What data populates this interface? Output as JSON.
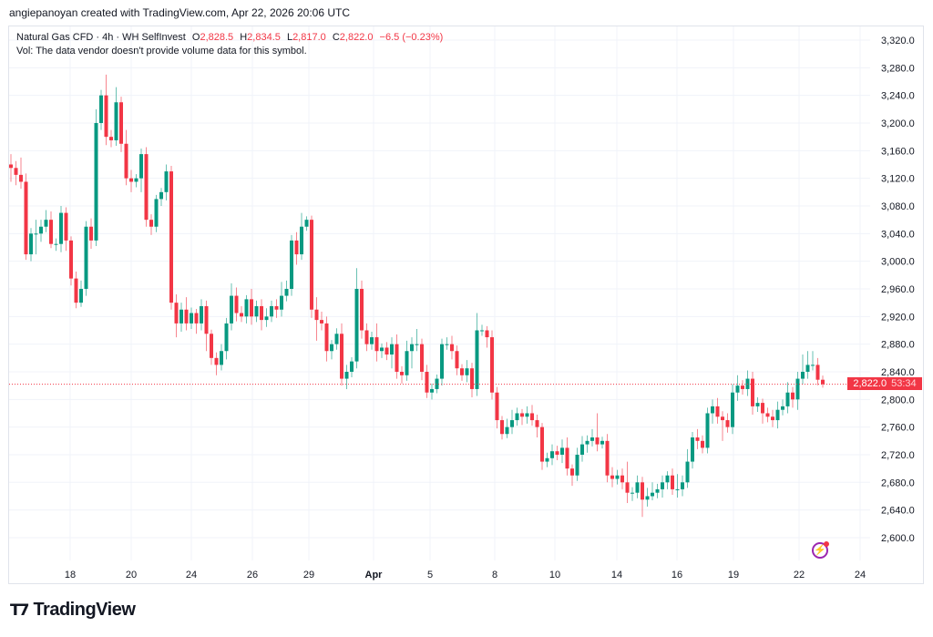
{
  "header": {
    "credit": "angiepanoyan created with TradingView.com, Apr 22, 2026 20:06 UTC",
    "symbol": "Natural Gas CFD · 4h · WH SelfInvest",
    "open_label": "O",
    "open": "2,828.5",
    "high_label": "H",
    "high": "2,834.5",
    "low_label": "L",
    "low": "2,817.0",
    "close_label": "C",
    "close": "2,822.0",
    "change": "−6.5 (−0.23%)",
    "volume_note": "Vol: The data vendor doesn't provide volume data for this symbol."
  },
  "price_tag": {
    "price": "2,822.0",
    "countdown": "53:34"
  },
  "logo": {
    "mark": "TV",
    "text": "TradingView"
  },
  "icons": {
    "alert": "lightning-bolt-icon"
  },
  "colors": {
    "up": "#089981",
    "down": "#f23645",
    "grid": "#f0f3fa",
    "alert": "#9c27b0"
  },
  "chart_data": {
    "type": "candlestick",
    "title": "Natural Gas CFD · 4h · WH SelfInvest",
    "ylim": [
      2580,
      3340
    ],
    "y_ticks": [
      "2,600.0",
      "2,640.0",
      "2,680.0",
      "2,720.0",
      "2,760.0",
      "2,800.0",
      "2,840.0",
      "2,880.0",
      "2,920.0",
      "2,960.0",
      "3,000.0",
      "3,040.0",
      "3,080.0",
      "3,120.0",
      "3,160.0",
      "3,200.0",
      "3,240.0",
      "3,280.0",
      "3,320.0"
    ],
    "y_tick_values": [
      2600,
      2640,
      2680,
      2720,
      2760,
      2800,
      2840,
      2880,
      2920,
      2960,
      3000,
      3040,
      3080,
      3120,
      3160,
      3200,
      3240,
      3280,
      3320
    ],
    "x_ticks": [
      "18",
      "20",
      "24",
      "26",
      "29",
      "Apr",
      "5",
      "8",
      "10",
      "14",
      "16",
      "19",
      "22",
      "24"
    ],
    "last_price": 2822.0,
    "first_open": 3140,
    "close": [
      3135,
      3125,
      3115,
      3010,
      3040,
      3040,
      3050,
      3060,
      3025,
      3025,
      3070,
      3030,
      2975,
      2940,
      2960,
      3050,
      3030,
      3200,
      3240,
      3180,
      3175,
      3230,
      3170,
      3120,
      3115,
      3120,
      3155,
      3060,
      3050,
      3090,
      3100,
      3130,
      2940,
      2910,
      2930,
      2910,
      2925,
      2910,
      2935,
      2895,
      2860,
      2850,
      2870,
      2910,
      2950,
      2925,
      2920,
      2945,
      2920,
      2935,
      2915,
      2920,
      2935,
      2930,
      2950,
      2960,
      3030,
      3010,
      3050,
      3060,
      2930,
      2915,
      2910,
      2870,
      2880,
      2895,
      2830,
      2840,
      2855,
      2960,
      2900,
      2880,
      2890,
      2870,
      2875,
      2865,
      2880,
      2840,
      2835,
      2870,
      2880,
      2880,
      2840,
      2810,
      2815,
      2830,
      2880,
      2880,
      2870,
      2845,
      2835,
      2845,
      2815,
      2900,
      2900,
      2890,
      2810,
      2770,
      2750,
      2760,
      2770,
      2780,
      2775,
      2780,
      2770,
      2760,
      2710,
      2715,
      2725,
      2720,
      2730,
      2700,
      2690,
      2720,
      2735,
      2740,
      2745,
      2735,
      2740,
      2690,
      2685,
      2690,
      2680,
      2665,
      2665,
      2680,
      2655,
      2660,
      2665,
      2670,
      2680,
      2690,
      2670,
      2670,
      2680,
      2710,
      2745,
      2740,
      2730,
      2780,
      2790,
      2775,
      2770,
      2760,
      2810,
      2820,
      2815,
      2830,
      2790,
      2795,
      2780,
      2775,
      2770,
      2785,
      2790,
      2810,
      2800,
      2830,
      2840,
      2850,
      2850,
      2828.5,
      2822.0
    ],
    "wick_up": [
      15,
      10,
      25,
      12,
      8,
      20,
      10,
      14,
      12,
      8,
      10,
      8,
      6,
      10,
      12,
      8,
      12,
      20,
      8,
      30,
      10,
      22,
      8,
      20,
      12,
      6,
      8,
      10,
      8,
      6,
      6,
      10,
      8,
      12,
      10,
      18,
      8,
      6,
      10,
      8,
      6,
      8,
      10,
      8,
      18,
      12,
      10,
      6,
      15,
      8,
      10,
      12,
      8,
      10,
      20,
      12,
      8,
      12,
      20,
      5,
      6,
      18,
      12,
      10,
      6,
      8,
      15,
      10,
      6,
      30,
      12,
      10,
      8,
      20,
      6,
      8,
      10,
      14,
      8,
      15,
      10,
      22,
      8,
      10,
      8,
      6,
      8,
      10,
      12,
      8,
      6,
      12,
      8,
      25,
      8,
      6,
      10,
      8,
      6,
      12,
      15,
      8,
      6,
      10,
      12,
      8,
      6,
      8,
      10,
      8,
      12,
      15,
      6,
      10,
      12,
      8,
      12,
      35,
      6,
      10,
      12,
      8,
      10,
      30,
      8,
      10,
      8,
      12,
      15,
      8,
      10,
      6,
      10,
      22,
      10,
      18,
      8,
      12,
      8,
      8,
      10,
      12,
      8,
      10,
      12,
      15,
      8,
      12,
      10,
      8,
      6,
      8,
      10,
      12,
      10,
      15,
      8,
      10,
      25,
      20,
      20,
      10,
      6
    ],
    "wick_down": [
      20,
      15,
      10,
      8,
      10,
      30,
      12,
      8,
      6,
      10,
      12,
      15,
      10,
      8,
      6,
      10,
      12,
      8,
      10,
      12,
      10,
      8,
      12,
      10,
      15,
      8,
      20,
      10,
      12,
      8,
      10,
      12,
      10,
      20,
      12,
      10,
      8,
      15,
      10,
      25,
      10,
      15,
      8,
      12,
      10,
      12,
      8,
      10,
      12,
      8,
      15,
      10,
      8,
      12,
      10,
      8,
      10,
      15,
      8,
      6,
      12,
      30,
      10,
      15,
      12,
      8,
      10,
      15,
      8,
      10,
      12,
      10,
      8,
      15,
      10,
      8,
      20,
      10,
      12,
      8,
      25,
      10,
      12,
      8,
      10,
      6,
      10,
      8,
      12,
      10,
      8,
      10,
      12,
      10,
      8,
      15,
      10,
      12,
      8,
      6,
      10,
      8,
      12,
      10,
      8,
      15,
      12,
      8,
      10,
      8,
      12,
      10,
      15,
      8,
      10,
      12,
      8,
      10,
      6,
      10,
      12,
      8,
      10,
      15,
      12,
      8,
      25,
      10,
      6,
      8,
      12,
      10,
      8,
      12,
      10,
      8,
      10,
      12,
      8,
      8,
      15,
      10,
      30,
      8,
      10,
      12,
      8,
      10,
      12,
      8,
      15,
      8,
      10,
      12,
      8,
      10,
      12,
      15,
      8,
      10,
      8,
      8,
      5
    ]
  }
}
